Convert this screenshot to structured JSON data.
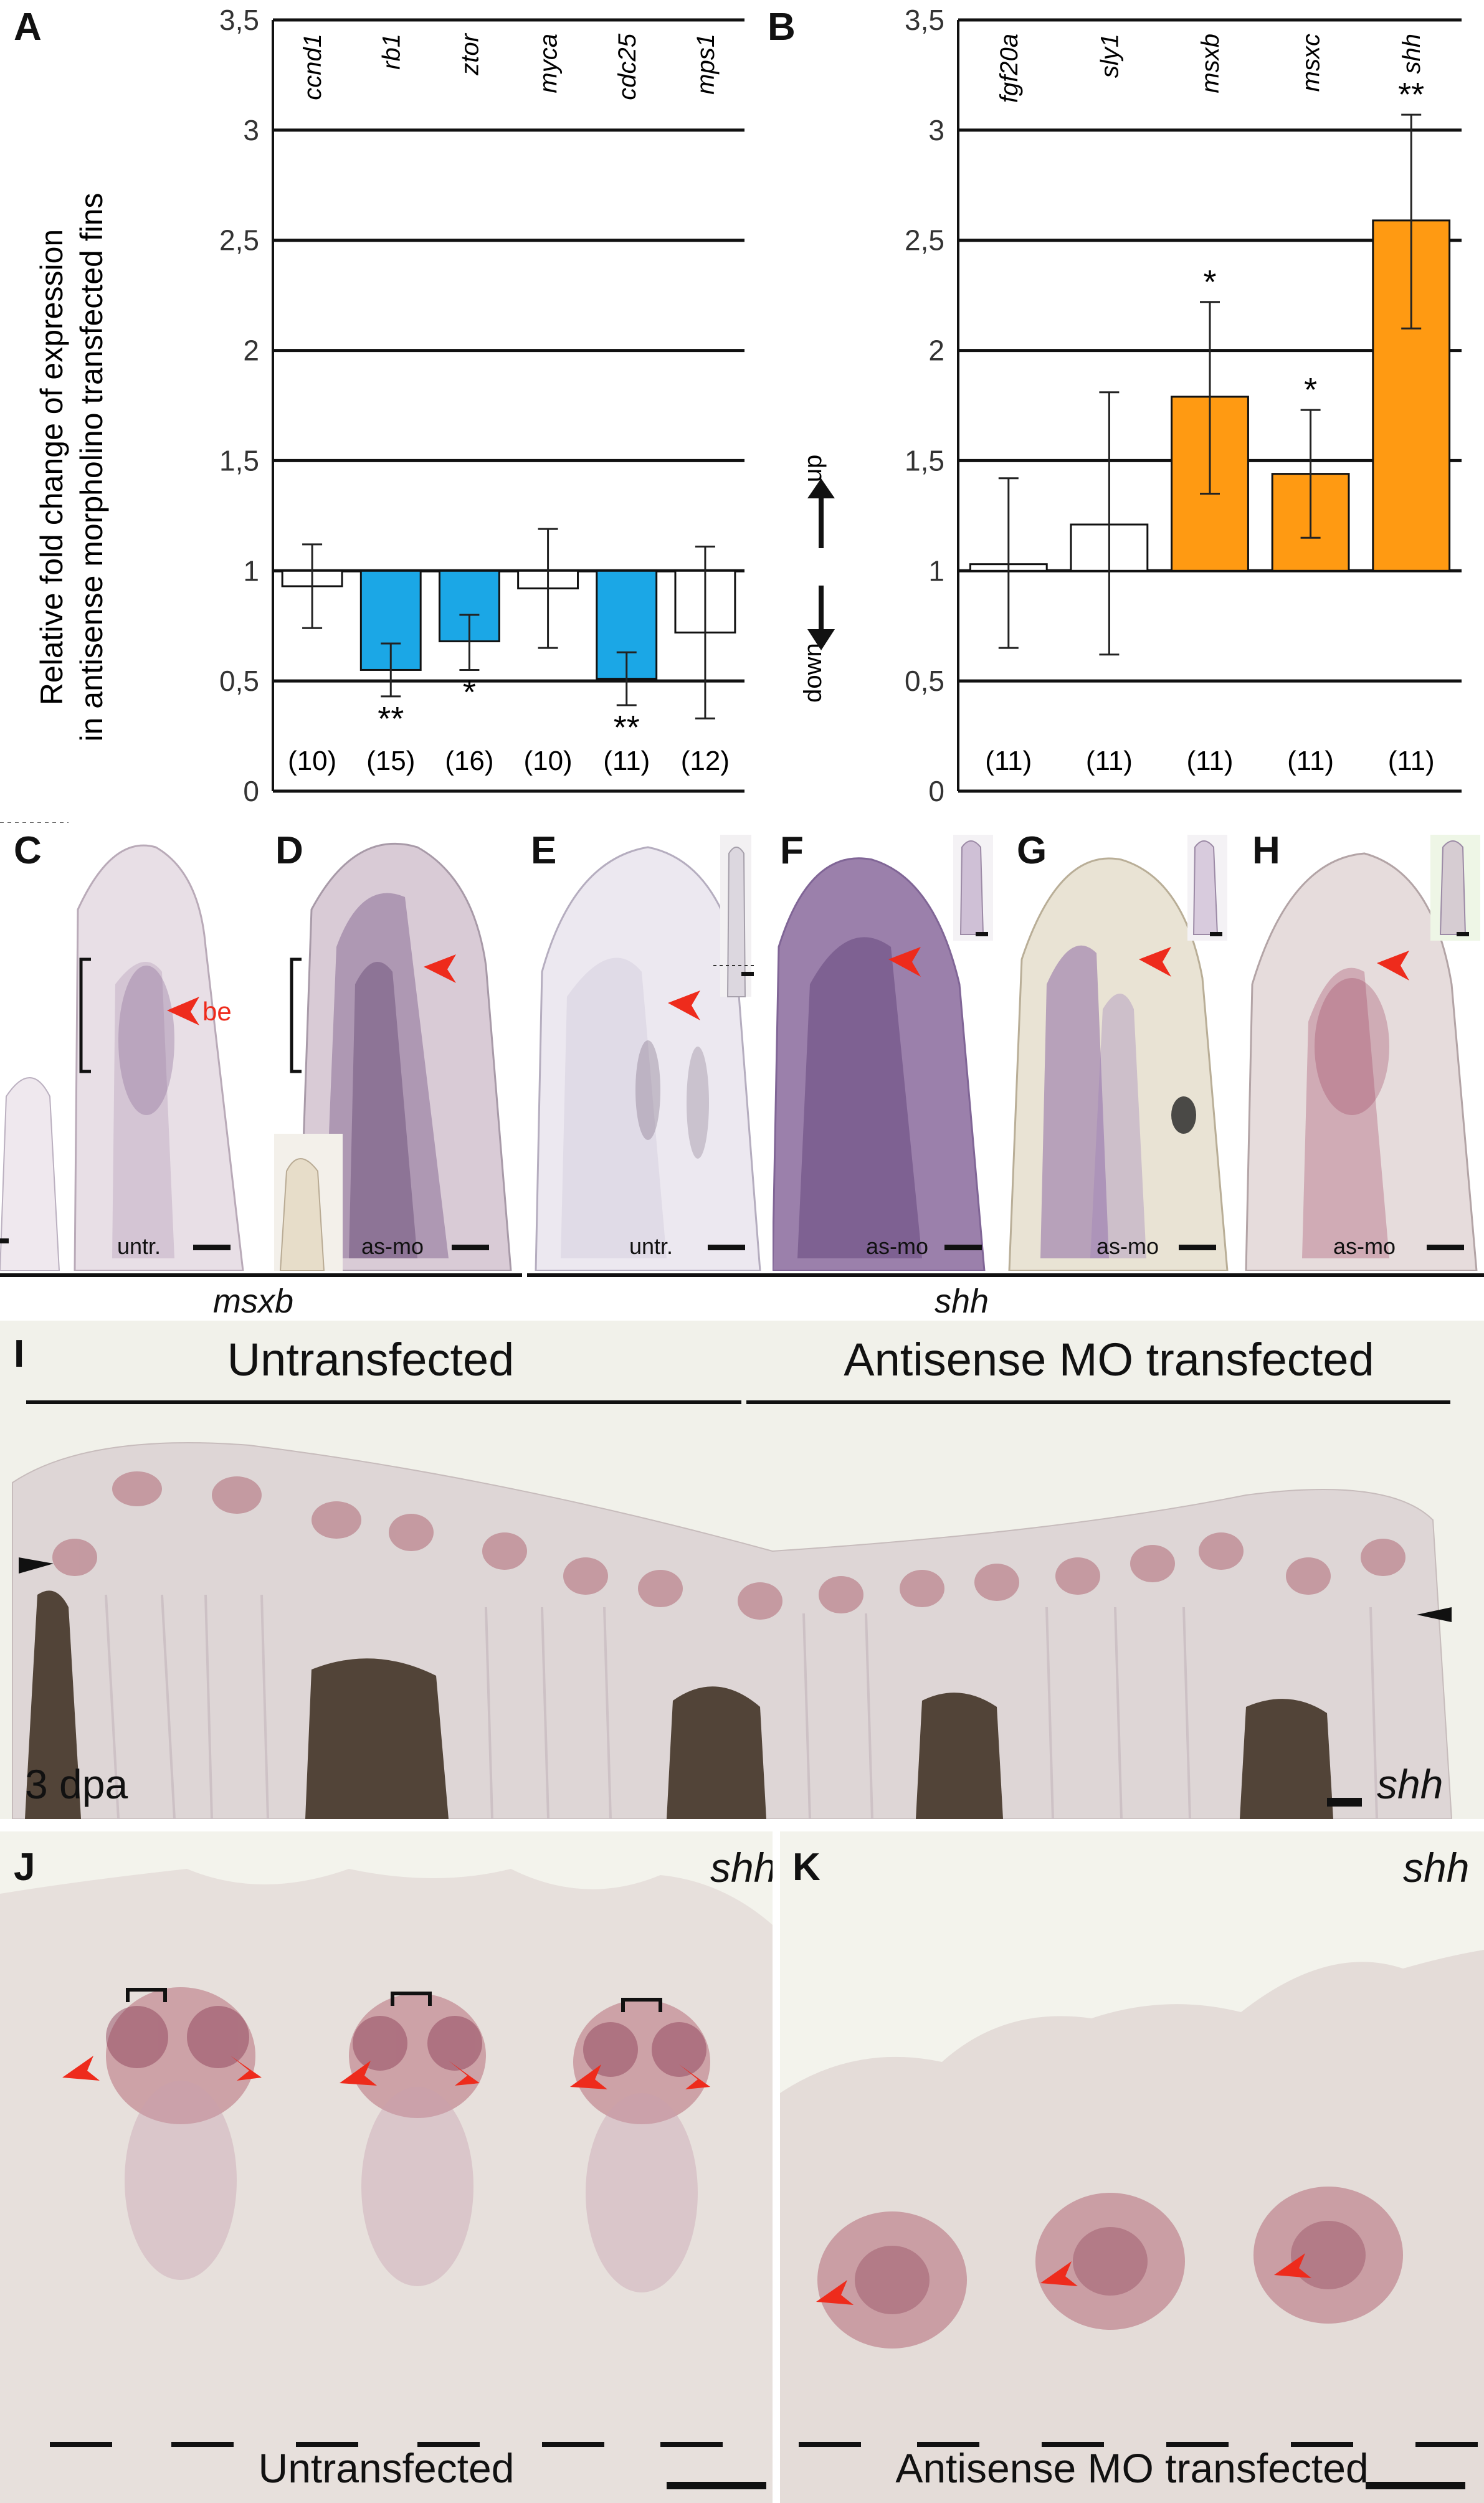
{
  "panels": {
    "A": "A",
    "B": "B",
    "C": "C",
    "D": "D",
    "E": "E",
    "F": "F",
    "G": "G",
    "H": "H",
    "I": "I",
    "J": "J",
    "K": "K"
  },
  "y_axis_label_line1": "Relative fold change of expression",
  "y_axis_label_line2": "in antisense morpholino transfected fins",
  "direction_up": "up",
  "direction_down": "down",
  "chart_data": [
    {
      "type": "bar",
      "panel": "A",
      "categories": [
        "ccnd1",
        "rb1",
        "ztor",
        "myca",
        "cdc25",
        "mps1"
      ],
      "values": [
        0.93,
        0.55,
        0.68,
        0.92,
        0.51,
        0.72
      ],
      "error_low": [
        0.74,
        0.43,
        0.55,
        0.65,
        0.39,
        0.33
      ],
      "error_high": [
        1.12,
        0.67,
        0.8,
        1.19,
        0.63,
        1.11
      ],
      "significance": [
        "",
        "**",
        "*",
        "",
        "**",
        ""
      ],
      "n": [
        "(10)",
        "(15)",
        "(16)",
        "(10)",
        "(11)",
        "(12)"
      ],
      "highlight": [
        false,
        true,
        true,
        false,
        true,
        false
      ],
      "ylim": [
        0,
        3.5
      ],
      "yticks": [
        "0",
        "0,5",
        "1",
        "1,5",
        "2",
        "2,5",
        "3",
        "3,5"
      ],
      "highlight_color": "#1ba7e6"
    },
    {
      "type": "bar",
      "panel": "B",
      "categories": [
        "fgf20a",
        "sly1",
        "msxb",
        "msxc",
        "shh"
      ],
      "values": [
        1.03,
        1.21,
        1.79,
        1.44,
        2.59
      ],
      "error_low": [
        0.65,
        0.62,
        1.35,
        1.15,
        2.1
      ],
      "error_high": [
        1.42,
        1.81,
        2.22,
        1.73,
        3.07
      ],
      "significance": [
        "",
        "",
        "*",
        "*",
        "**"
      ],
      "n": [
        "(11)",
        "(11)",
        "(11)",
        "(11)",
        "(11)"
      ],
      "highlight": [
        false,
        false,
        true,
        true,
        true
      ],
      "ylim": [
        0,
        3.5
      ],
      "yticks": [
        "0",
        "0,5",
        "1",
        "1,5",
        "2",
        "2,5",
        "3",
        "3,5"
      ],
      "highlight_color": "#ff9a12"
    }
  ],
  "micrographs": {
    "C": {
      "label": "untr.",
      "be_label": "be"
    },
    "D": {
      "label": "as-mo"
    },
    "E": {
      "label": "untr."
    },
    "F": {
      "label": "as-mo"
    },
    "G": {
      "label": "as-mo"
    },
    "H": {
      "label": "as-mo"
    }
  },
  "gene_msxb": "msxb",
  "gene_shh": "shh",
  "panel_I": {
    "left_group": "Untransfected",
    "right_group": "Antisense MO transfected",
    "time": "3 dpa",
    "gene": "shh"
  },
  "panel_J": {
    "gene": "shh",
    "caption": "Untransfected"
  },
  "panel_K": {
    "gene": "shh",
    "caption": "Antisense MO transfected"
  },
  "colors": {
    "bar_blue": "#1ba7e6",
    "bar_orange": "#ff9a12",
    "stain_purple": "#7a4d86",
    "tissue_bg": "#eae4e2",
    "arrow_red": "#ee2b1c"
  }
}
